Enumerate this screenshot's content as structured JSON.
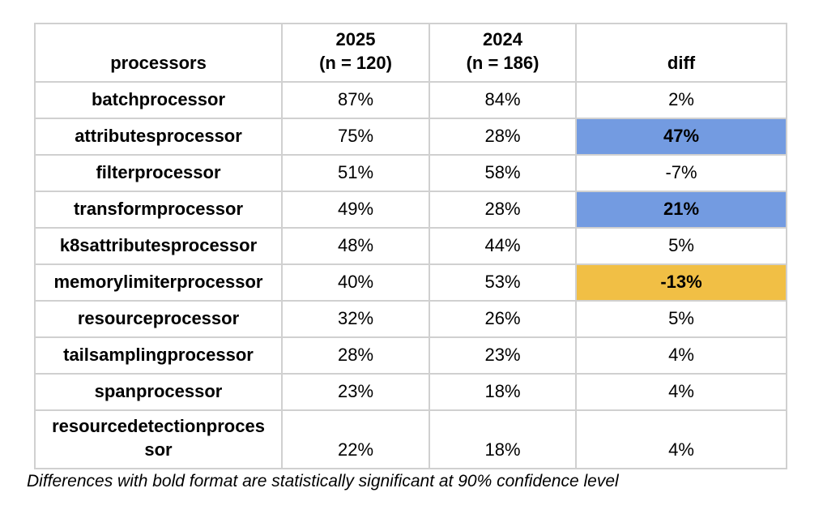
{
  "chart_data": {
    "type": "table",
    "columns": [
      {
        "label": "processors"
      },
      {
        "line1": "2025",
        "line2": "(n = 120)"
      },
      {
        "line1": "2024",
        "line2": "(n = 186)"
      },
      {
        "label": "diff"
      }
    ],
    "rows": [
      {
        "name": "batchprocessor",
        "y2025": "87%",
        "y2024": "84%",
        "diff": "2%",
        "highlight": "none"
      },
      {
        "name": "attributesprocessor",
        "y2025": "75%",
        "y2024": "28%",
        "diff": "47%",
        "highlight": "increase"
      },
      {
        "name": "filterprocessor",
        "y2025": "51%",
        "y2024": "58%",
        "diff": "-7%",
        "highlight": "none"
      },
      {
        "name": "transformprocessor",
        "y2025": "49%",
        "y2024": "28%",
        "diff": "21%",
        "highlight": "increase"
      },
      {
        "name": "k8sattributesprocessor",
        "y2025": "48%",
        "y2024": "44%",
        "diff": "5%",
        "highlight": "none"
      },
      {
        "name": "memorylimiterprocessor",
        "y2025": "40%",
        "y2024": "53%",
        "diff": "-13%",
        "highlight": "decrease"
      },
      {
        "name": "resourceprocessor",
        "y2025": "32%",
        "y2024": "26%",
        "diff": "5%",
        "highlight": "none"
      },
      {
        "name": "tailsamplingprocessor",
        "y2025": "28%",
        "y2024": "23%",
        "diff": "4%",
        "highlight": "none"
      },
      {
        "name": "spanprocessor",
        "y2025": "23%",
        "y2024": "18%",
        "diff": "4%",
        "highlight": "none"
      },
      {
        "name": "resourcedetectionprocessor",
        "y2025": "22%",
        "y2024": "18%",
        "diff": "4%",
        "highlight": "none"
      }
    ],
    "highlight_colors": {
      "increase": "#739BE1",
      "decrease": "#F1BF45"
    },
    "border_color": "#D0D0D0",
    "footnote": "Differences with bold format are statistically significant at 90% confidence level"
  }
}
